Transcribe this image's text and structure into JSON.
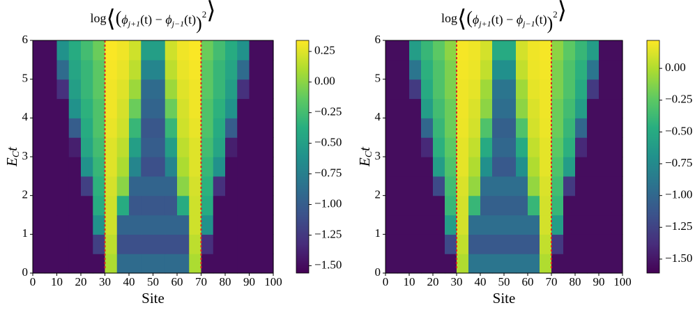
{
  "chart_data": [
    {
      "type": "heatmap",
      "title": [
        "log",
        "⟨",
        "(",
        "ϕ",
        "j+1",
        "(t) − ",
        "ϕ",
        "j−1",
        "(t)",
        ")",
        "2",
        "⟩"
      ],
      "xlabel": "Site",
      "ylabel": [
        "E",
        "C",
        "t"
      ],
      "xlim": [
        0,
        100
      ],
      "ylim": [
        0,
        6
      ],
      "xticks": [
        0,
        10,
        20,
        30,
        40,
        50,
        60,
        70,
        80,
        90,
        100
      ],
      "yticks": [
        0,
        1,
        2,
        3,
        4,
        5,
        6
      ],
      "colormap": "viridis",
      "zlim": [
        -1.56,
        0.34
      ],
      "zticks": [
        0.25,
        {
          "value": 0,
          "label": "0.00"
        },
        {
          "value": -0.25,
          "label": "−0.25"
        },
        {
          "value": -0.5,
          "label": "−0.50"
        },
        {
          "value": -0.75,
          "label": "−0.75"
        },
        {
          "value": -1,
          "label": "−1.00"
        },
        {
          "value": -1.25,
          "label": "−1.25"
        },
        {
          "value": -1.5,
          "label": "−1.50"
        }
      ],
      "reference_lines": [
        30,
        70
      ],
      "reference_color": "#d62728",
      "z": [
        [
          -1.5,
          -1.5,
          -1.5,
          -1.5,
          -1.5,
          -1.5,
          0.1,
          -0.9,
          -0.9,
          -0.9,
          -0.9,
          -0.9,
          -0.9,
          0.1,
          -1.5,
          -1.5,
          -1.5,
          -1.5,
          -1.5,
          -1.5
        ],
        [
          -1.5,
          -1.5,
          -1.5,
          -1.5,
          -1.5,
          -1.2,
          0.15,
          -1.1,
          -1.1,
          -1.1,
          -1.1,
          -1.1,
          -1.1,
          0.15,
          -1.3,
          -1.5,
          -1.5,
          -1.5,
          -1.5,
          -1.5
        ],
        [
          -1.5,
          -1.5,
          -1.5,
          -1.5,
          -1.5,
          -0.6,
          0.2,
          -0.95,
          -0.95,
          -0.95,
          -0.95,
          -0.95,
          -0.95,
          0.2,
          -0.6,
          -1.5,
          -1.5,
          -1.5,
          -1.5,
          -1.5
        ],
        [
          -1.5,
          -1.5,
          -1.5,
          -1.5,
          -1.5,
          -0.4,
          0.2,
          -0.4,
          -1.05,
          -1.05,
          -1.05,
          -1.05,
          -0.4,
          0.2,
          -0.4,
          -1.5,
          -1.5,
          -1.5,
          -1.5,
          -1.5
        ],
        [
          -1.5,
          -1.5,
          -1.5,
          -1.5,
          -1.2,
          -0.35,
          0.22,
          0,
          -0.95,
          -0.95,
          -0.95,
          -0.95,
          0,
          0.22,
          -0.35,
          -1.3,
          -1.5,
          -1.5,
          -1.5,
          -1.5
        ],
        [
          -1.5,
          -1.5,
          -1.5,
          -1.5,
          -0.6,
          -0.3,
          0.25,
          0.1,
          -0.7,
          -1.1,
          -1.1,
          -0.7,
          0.1,
          0.25,
          -0.3,
          -0.6,
          -1.5,
          -1.5,
          -1.5,
          -1.5
        ],
        [
          -1.5,
          -1.5,
          -1.5,
          -1.4,
          -0.45,
          -0.25,
          0.25,
          0.15,
          -0.5,
          -1,
          -1,
          -0.5,
          0.15,
          0.25,
          -0.25,
          -0.45,
          -1.4,
          -1.5,
          -1.5,
          -1.5
        ],
        [
          -1.5,
          -1.5,
          -1.5,
          -1,
          -0.4,
          -0.2,
          0.28,
          0.2,
          -0.3,
          -1.05,
          -1.05,
          -0.3,
          0.2,
          0.28,
          -0.2,
          -0.4,
          -1,
          -1.5,
          -1.5,
          -1.5
        ],
        [
          -1.5,
          -1.5,
          -1.5,
          -0.6,
          -0.35,
          -0.2,
          0.3,
          0.22,
          -0.1,
          -0.95,
          -0.95,
          -0.1,
          0.22,
          0.3,
          -0.2,
          -0.35,
          -0.6,
          -1.5,
          -1.5,
          -1.5
        ],
        [
          -1.5,
          -1.5,
          -1.3,
          -0.5,
          -0.3,
          -0.15,
          0.3,
          0.25,
          0.05,
          -0.9,
          -0.9,
          0.05,
          0.25,
          0.3,
          -0.15,
          -0.3,
          -0.5,
          -1.3,
          -1.5,
          -1.5
        ],
        [
          -1.5,
          -1.5,
          -0.9,
          -0.45,
          -0.3,
          -0.15,
          0.32,
          0.28,
          0.15,
          -0.7,
          -0.7,
          0.15,
          0.28,
          0.32,
          -0.15,
          -0.3,
          -0.45,
          -0.9,
          -1.5,
          -1.5
        ],
        [
          -1.5,
          -1.5,
          -0.6,
          -0.4,
          -0.25,
          -0.1,
          0.33,
          0.3,
          0.2,
          -0.5,
          -0.5,
          0.2,
          0.3,
          0.33,
          -0.1,
          -0.25,
          -0.4,
          -0.6,
          -1.5,
          -1.5
        ]
      ]
    },
    {
      "type": "heatmap",
      "title": [
        "log",
        "⟨",
        "(",
        "ϕ",
        "j+1",
        "(t) − ",
        "ϕ",
        "j−1",
        "(t)",
        ")",
        "2",
        "⟩"
      ],
      "xlabel": "Site",
      "ylabel": [
        "E",
        "C",
        "t"
      ],
      "xlim": [
        0,
        100
      ],
      "ylim": [
        0,
        6
      ],
      "xticks": [
        0,
        10,
        20,
        30,
        40,
        50,
        60,
        70,
        80,
        90,
        100
      ],
      "yticks": [
        0,
        1,
        2,
        3,
        4,
        5,
        6
      ],
      "colormap": "viridis",
      "zlim": [
        -1.61,
        0.22
      ],
      "zticks": [
        {
          "value": 0,
          "label": "0.00"
        },
        {
          "value": -0.25,
          "label": "−0.25"
        },
        {
          "value": -0.5,
          "label": "−0.50"
        },
        {
          "value": -0.75,
          "label": "−0.75"
        },
        {
          "value": -1,
          "label": "−1.00"
        },
        {
          "value": -1.25,
          "label": "−1.25"
        },
        {
          "value": -1.5,
          "label": "−1.50"
        }
      ],
      "reference_lines": [
        30,
        70
      ],
      "reference_color": "#d62728",
      "z": [
        [
          -1.55,
          -1.55,
          -1.55,
          -1.55,
          -1.55,
          -1.55,
          0,
          -0.9,
          -0.9,
          -0.9,
          -0.9,
          -0.9,
          -0.9,
          0,
          -1.55,
          -1.55,
          -1.55,
          -1.55,
          -1.55,
          -1.55
        ],
        [
          -1.55,
          -1.55,
          -1.55,
          -1.55,
          -1.55,
          -1.2,
          0.05,
          -1.1,
          -1.1,
          -1.1,
          -1.1,
          -1.1,
          -1.1,
          0.05,
          -1.3,
          -1.55,
          -1.55,
          -1.55,
          -1.55,
          -1.55
        ],
        [
          -1.55,
          -1.55,
          -1.55,
          -1.55,
          -1.55,
          -0.6,
          0.1,
          -0.95,
          -0.95,
          -0.95,
          -0.95,
          -0.95,
          -0.95,
          0.1,
          -0.6,
          -1.55,
          -1.55,
          -1.55,
          -1.55,
          -1.55
        ],
        [
          -1.55,
          -1.55,
          -1.55,
          -1.55,
          -1.55,
          -0.4,
          0.1,
          -0.4,
          -1.05,
          -1.05,
          -1.05,
          -1.05,
          -0.4,
          0.1,
          -0.4,
          -1.55,
          -1.55,
          -1.55,
          -1.55,
          -1.55
        ],
        [
          -1.55,
          -1.55,
          -1.55,
          -1.55,
          -1.2,
          -0.35,
          0.12,
          -0.08,
          -0.95,
          -0.95,
          -0.95,
          -0.95,
          -0.08,
          0.12,
          -0.35,
          -1.3,
          -1.55,
          -1.55,
          -1.55,
          -1.55
        ],
        [
          -1.55,
          -1.55,
          -1.55,
          -1.55,
          -0.6,
          -0.3,
          0.15,
          0,
          -0.7,
          -1.1,
          -1.1,
          -0.7,
          0,
          0.15,
          -0.3,
          -0.6,
          -1.55,
          -1.55,
          -1.55,
          -1.55
        ],
        [
          -1.55,
          -1.55,
          -1.55,
          -1.4,
          -0.45,
          -0.25,
          0.15,
          0.05,
          -0.5,
          -1,
          -1,
          -0.5,
          0.05,
          0.15,
          -0.25,
          -0.45,
          -1.4,
          -1.55,
          -1.55,
          -1.55
        ],
        [
          -1.55,
          -1.55,
          -1.55,
          -1,
          -0.4,
          -0.2,
          0.17,
          0.1,
          -0.3,
          -1.05,
          -1.05,
          -0.3,
          0.1,
          0.17,
          -0.2,
          -0.4,
          -1,
          -1.55,
          -1.55,
          -1.55
        ],
        [
          -1.55,
          -1.55,
          -1.55,
          -0.6,
          -0.35,
          -0.2,
          0.18,
          0.12,
          -0.1,
          -0.95,
          -0.95,
          -0.1,
          0.12,
          0.18,
          -0.2,
          -0.35,
          -0.6,
          -1.55,
          -1.55,
          -1.55
        ],
        [
          -1.55,
          -1.55,
          -1.3,
          -0.5,
          -0.3,
          -0.15,
          0.18,
          0.15,
          -0.05,
          -0.9,
          -0.9,
          -0.05,
          0.15,
          0.18,
          -0.15,
          -0.3,
          -0.5,
          -1.3,
          -1.55,
          -1.55
        ],
        [
          -1.55,
          -1.55,
          -0.9,
          -0.45,
          -0.3,
          -0.15,
          0.19,
          0.17,
          0.05,
          -0.7,
          -0.7,
          0.05,
          0.17,
          0.19,
          -0.15,
          -0.3,
          -0.45,
          -0.9,
          -1.55,
          -1.55
        ],
        [
          -1.55,
          -1.55,
          -0.6,
          -0.4,
          -0.25,
          -0.1,
          0.2,
          0.18,
          0.1,
          -0.5,
          -0.5,
          0.1,
          0.18,
          0.2,
          -0.1,
          -0.25,
          -0.4,
          -0.6,
          -1.55,
          -1.55
        ]
      ]
    }
  ]
}
